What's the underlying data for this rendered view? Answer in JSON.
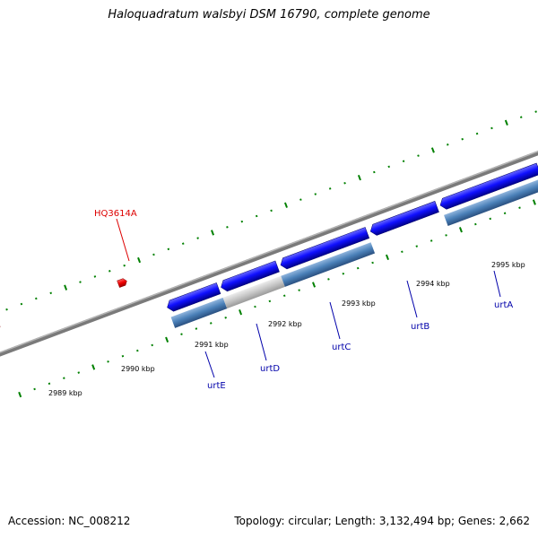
{
  "title": "Haloquadratum walsbyi DSM 16790, complete genome",
  "footer": {
    "accession": "Accession: NC_008212",
    "summary": "Topology: circular; Length: 3,132,494 bp; Genes: 2,662"
  },
  "scale_labels": {
    "kbp_2989": "2989 kbp",
    "kbp_2990": "2990 kbp",
    "kbp_2991": "2991 kbp",
    "kbp_2992": "2992 kbp",
    "kbp_2993": "2993 kbp",
    "kbp_2994": "2994 kbp",
    "kbp_2995": "2995 kbp"
  },
  "genes": {
    "red_label": "HQ3614A",
    "urtE": "urtE",
    "urtD": "urtD",
    "urtC": "urtC",
    "urtB": "urtB",
    "urtA": "urtA"
  },
  "colors": {
    "backbone": "#808080",
    "tick_green": "#008000",
    "cds_blue": "#0000ee",
    "feature_steel": "#4a80b8",
    "feature_gray": "#c0c0c0",
    "red_gene": "#ee0000",
    "label_blue": "#0000aa",
    "label_red": "#dd0000"
  }
}
